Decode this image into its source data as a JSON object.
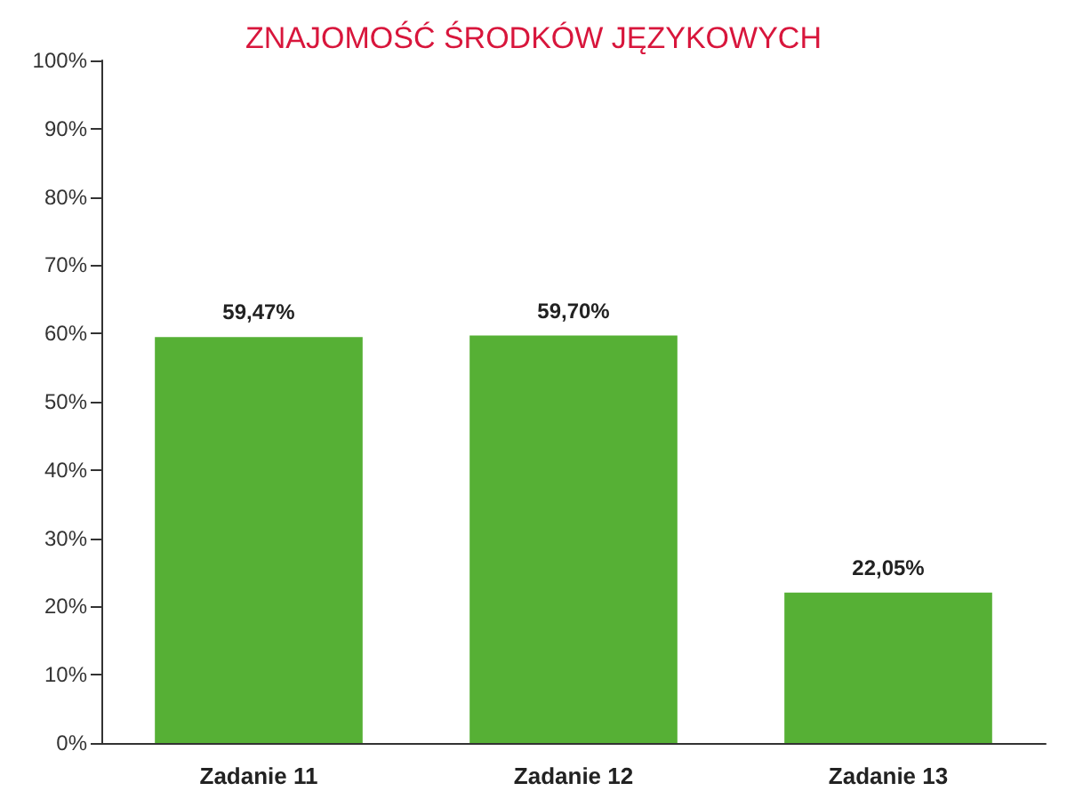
{
  "chart_data": {
    "type": "bar",
    "title": "ZNAJOMOŚĆ ŚRODKÓW JĘZYKOWYCH",
    "categories": [
      "Zadanie 11",
      "Zadanie 12",
      "Zadanie 13"
    ],
    "values": [
      59.47,
      59.7,
      22.05
    ],
    "value_labels": [
      "59,47%",
      "59,70%",
      "22,05%"
    ],
    "color": "#56b035",
    "ylim": [
      0,
      100
    ],
    "yticks": [
      {
        "value": 0,
        "label": "0%"
      },
      {
        "value": 10,
        "label": "10%"
      },
      {
        "value": 20,
        "label": "20%"
      },
      {
        "value": 30,
        "label": "30%"
      },
      {
        "value": 40,
        "label": "40%"
      },
      {
        "value": 50,
        "label": "50%"
      },
      {
        "value": 60,
        "label": "60%"
      },
      {
        "value": 70,
        "label": "70%"
      },
      {
        "value": 80,
        "label": "80%"
      },
      {
        "value": 90,
        "label": "90%"
      },
      {
        "value": 100,
        "label": "100%"
      }
    ],
    "grid": false
  }
}
